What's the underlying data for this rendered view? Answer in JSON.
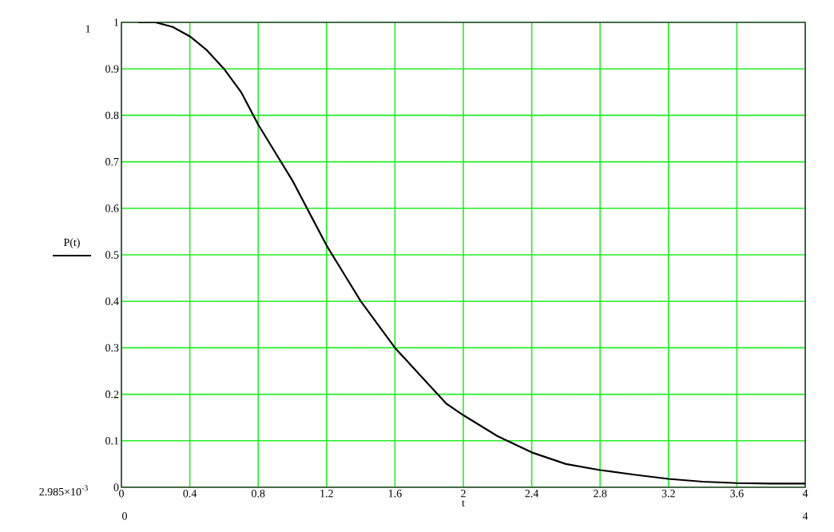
{
  "chart_data": {
    "type": "line",
    "xlabel": "t",
    "ylabel": "P(t)",
    "x": [
      0.1,
      0.2,
      0.3,
      0.4,
      0.5,
      0.6,
      0.7,
      0.8,
      0.9,
      1.0,
      1.1,
      1.2,
      1.3,
      1.4,
      1.5,
      1.6,
      1.7,
      1.8,
      1.9,
      2.0,
      2.2,
      2.4,
      2.6,
      2.8,
      3.0,
      3.2,
      3.4,
      3.6,
      3.8,
      4.0
    ],
    "series": [
      {
        "color": "#000000",
        "values": [
          1.0,
          1.0,
          0.99,
          0.97,
          0.94,
          0.9,
          0.85,
          0.78,
          0.72,
          0.66,
          0.59,
          0.52,
          0.46,
          0.4,
          0.35,
          0.3,
          0.26,
          0.22,
          0.18,
          0.155,
          0.11,
          0.075,
          0.05,
          0.037,
          0.027,
          0.018,
          0.012,
          0.009,
          0.008,
          0.008
        ]
      }
    ],
    "xlim": [
      0,
      4
    ],
    "ylim": [
      0,
      1
    ],
    "xticks": [
      0,
      0.4,
      0.8,
      1.2,
      1.6,
      2,
      2.4,
      2.8,
      3.2,
      3.6,
      4
    ],
    "yticks": [
      0,
      0.1,
      0.2,
      0.3,
      0.4,
      0.5,
      0.6,
      0.7,
      0.8,
      0.9,
      1
    ],
    "grid": true,
    "line_style": "solid",
    "marker": "none",
    "annotations": [
      "1",
      "2.985×10$^{-3}$",
      "0",
      "4"
    ]
  }
}
